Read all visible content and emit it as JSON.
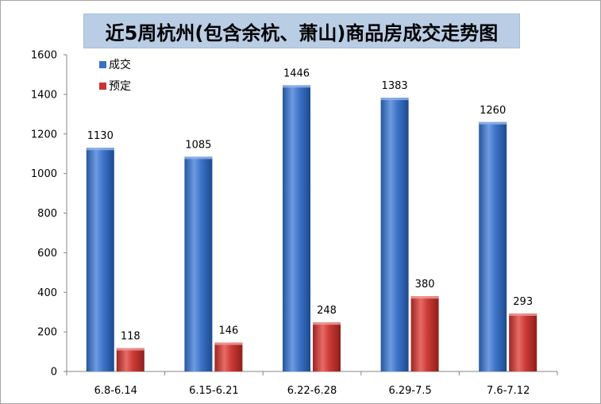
{
  "chart_data": {
    "type": "bar",
    "title": "近5周杭州(包含余杭、萧山)商品房成交走势图",
    "categories": [
      "6.8-6.14",
      "6.15-6.21",
      "6.22-6.28",
      "6.29-7.5",
      "7.6-7.12"
    ],
    "series": [
      {
        "name": "成交",
        "values": [
          1130,
          1085,
          1446,
          1383,
          1260
        ],
        "color": "#3a70c4"
      },
      {
        "name": "预定",
        "values": [
          118,
          146,
          248,
          380,
          293
        ],
        "color": "#c9332f"
      }
    ],
    "ylim": [
      0,
      1600
    ],
    "yticks": [
      "0",
      "200",
      "400",
      "600",
      "800",
      "1000",
      "1200",
      "1400",
      "1600"
    ],
    "grid": false,
    "legend": "top-left"
  }
}
